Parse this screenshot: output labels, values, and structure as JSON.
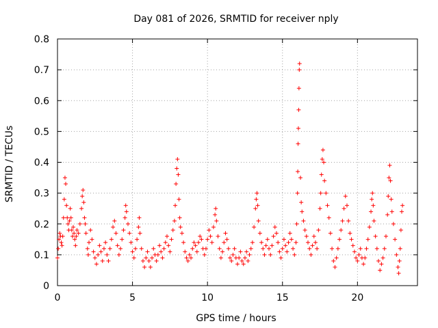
{
  "chart_data": {
    "type": "scatter",
    "title": "Day 081 of 2026, SRMTID for receiver nply",
    "xlabel": "GPS time / hours",
    "ylabel": "SRMTID / TECUs",
    "xlim": [
      0,
      24
    ],
    "ylim": [
      0,
      0.8
    ],
    "x_ticks": [
      0,
      5,
      10,
      15,
      20
    ],
    "x_tick_labels": [
      "0",
      "5",
      "10",
      "15",
      "20"
    ],
    "y_ticks": [
      0,
      0.1,
      0.2,
      0.3,
      0.4,
      0.5,
      0.6,
      0.7,
      0.8
    ],
    "y_tick_labels": [
      "0",
      "0.1",
      "0.2",
      "0.3",
      "0.4",
      "0.5",
      "0.6",
      "0.7",
      "0.8"
    ],
    "grid": true,
    "marker": "+",
    "color": "#ff0000",
    "series": [
      {
        "name": "SRMTID",
        "points": [
          [
            0.0,
            0.09
          ],
          [
            0.05,
            0.12
          ],
          [
            0.1,
            0.15
          ],
          [
            0.15,
            0.17
          ],
          [
            0.2,
            0.16
          ],
          [
            0.25,
            0.14
          ],
          [
            0.3,
            0.13
          ],
          [
            0.35,
            0.16
          ],
          [
            0.4,
            0.22
          ],
          [
            0.45,
            0.28
          ],
          [
            0.5,
            0.35
          ],
          [
            0.55,
            0.33
          ],
          [
            0.6,
            0.26
          ],
          [
            0.65,
            0.22
          ],
          [
            0.7,
            0.2
          ],
          [
            0.75,
            0.18
          ],
          [
            0.8,
            0.21
          ],
          [
            0.85,
            0.25
          ],
          [
            0.9,
            0.22
          ],
          [
            0.95,
            0.18
          ],
          [
            1.0,
            0.16
          ],
          [
            1.05,
            0.19
          ],
          [
            1.1,
            0.17
          ],
          [
            1.15,
            0.15
          ],
          [
            1.2,
            0.13
          ],
          [
            1.25,
            0.16
          ],
          [
            1.3,
            0.18
          ],
          [
            1.4,
            0.17
          ],
          [
            1.5,
            0.2
          ],
          [
            1.6,
            0.25
          ],
          [
            1.65,
            0.29
          ],
          [
            1.7,
            0.31
          ],
          [
            1.75,
            0.27
          ],
          [
            1.8,
            0.22
          ],
          [
            1.85,
            0.2
          ],
          [
            1.9,
            0.17
          ],
          [
            2.0,
            0.12
          ],
          [
            2.05,
            0.1
          ],
          [
            2.1,
            0.14
          ],
          [
            2.2,
            0.18
          ],
          [
            2.3,
            0.15
          ],
          [
            2.4,
            0.11
          ],
          [
            2.5,
            0.09
          ],
          [
            2.6,
            0.07
          ],
          [
            2.7,
            0.1
          ],
          [
            2.8,
            0.13
          ],
          [
            2.9,
            0.11
          ],
          [
            3.0,
            0.08
          ],
          [
            3.1,
            0.12
          ],
          [
            3.2,
            0.14
          ],
          [
            3.3,
            0.1
          ],
          [
            3.4,
            0.08
          ],
          [
            3.5,
            0.12
          ],
          [
            3.6,
            0.15
          ],
          [
            3.7,
            0.19
          ],
          [
            3.8,
            0.21
          ],
          [
            3.9,
            0.17
          ],
          [
            4.0,
            0.13
          ],
          [
            4.1,
            0.1
          ],
          [
            4.2,
            0.12
          ],
          [
            4.3,
            0.15
          ],
          [
            4.4,
            0.18
          ],
          [
            4.5,
            0.22
          ],
          [
            4.55,
            0.26
          ],
          [
            4.6,
            0.24
          ],
          [
            4.7,
            0.2
          ],
          [
            4.8,
            0.17
          ],
          [
            4.9,
            0.14
          ],
          [
            5.0,
            0.11
          ],
          [
            5.1,
            0.09
          ],
          [
            5.2,
            0.12
          ],
          [
            5.3,
            0.15
          ],
          [
            5.4,
            0.19
          ],
          [
            5.45,
            0.22
          ],
          [
            5.5,
            0.17
          ],
          [
            5.6,
            0.12
          ],
          [
            5.7,
            0.08
          ],
          [
            5.8,
            0.06
          ],
          [
            5.9,
            0.09
          ],
          [
            6.0,
            0.11
          ],
          [
            6.1,
            0.08
          ],
          [
            6.2,
            0.06
          ],
          [
            6.3,
            0.09
          ],
          [
            6.4,
            0.12
          ],
          [
            6.5,
            0.1
          ],
          [
            6.6,
            0.08
          ],
          [
            6.7,
            0.1
          ],
          [
            6.8,
            0.13
          ],
          [
            6.9,
            0.11
          ],
          [
            7.0,
            0.09
          ],
          [
            7.1,
            0.12
          ],
          [
            7.2,
            0.14
          ],
          [
            7.3,
            0.16
          ],
          [
            7.4,
            0.13
          ],
          [
            7.5,
            0.11
          ],
          [
            7.6,
            0.15
          ],
          [
            7.7,
            0.18
          ],
          [
            7.8,
            0.21
          ],
          [
            7.85,
            0.26
          ],
          [
            7.9,
            0.33
          ],
          [
            7.95,
            0.38
          ],
          [
            8.0,
            0.41
          ],
          [
            8.05,
            0.36
          ],
          [
            8.1,
            0.28
          ],
          [
            8.15,
            0.22
          ],
          [
            8.2,
            0.19
          ],
          [
            8.3,
            0.17
          ],
          [
            8.4,
            0.14
          ],
          [
            8.5,
            0.11
          ],
          [
            8.6,
            0.09
          ],
          [
            8.7,
            0.08
          ],
          [
            8.8,
            0.1
          ],
          [
            8.9,
            0.09
          ],
          [
            9.0,
            0.12
          ],
          [
            9.1,
            0.14
          ],
          [
            9.2,
            0.13
          ],
          [
            9.3,
            0.11
          ],
          [
            9.4,
            0.14
          ],
          [
            9.5,
            0.16
          ],
          [
            9.6,
            0.15
          ],
          [
            9.7,
            0.12
          ],
          [
            9.8,
            0.1
          ],
          [
            9.9,
            0.12
          ],
          [
            10.0,
            0.15
          ],
          [
            10.1,
            0.18
          ],
          [
            10.2,
            0.16
          ],
          [
            10.3,
            0.14
          ],
          [
            10.4,
            0.19
          ],
          [
            10.5,
            0.23
          ],
          [
            10.55,
            0.25
          ],
          [
            10.6,
            0.21
          ],
          [
            10.7,
            0.16
          ],
          [
            10.8,
            0.12
          ],
          [
            10.9,
            0.09
          ],
          [
            11.0,
            0.11
          ],
          [
            11.1,
            0.14
          ],
          [
            11.2,
            0.17
          ],
          [
            11.3,
            0.15
          ],
          [
            11.4,
            0.12
          ],
          [
            11.5,
            0.09
          ],
          [
            11.6,
            0.08
          ],
          [
            11.7,
            0.1
          ],
          [
            11.8,
            0.12
          ],
          [
            11.9,
            0.09
          ],
          [
            12.0,
            0.07
          ],
          [
            12.1,
            0.09
          ],
          [
            12.2,
            0.11
          ],
          [
            12.3,
            0.08
          ],
          [
            12.4,
            0.07
          ],
          [
            12.5,
            0.09
          ],
          [
            12.6,
            0.11
          ],
          [
            12.7,
            0.08
          ],
          [
            12.8,
            0.1
          ],
          [
            12.9,
            0.12
          ],
          [
            13.0,
            0.14
          ],
          [
            13.1,
            0.19
          ],
          [
            13.2,
            0.25
          ],
          [
            13.25,
            0.28
          ],
          [
            13.3,
            0.3
          ],
          [
            13.35,
            0.26
          ],
          [
            13.4,
            0.21
          ],
          [
            13.5,
            0.17
          ],
          [
            13.6,
            0.14
          ],
          [
            13.7,
            0.12
          ],
          [
            13.8,
            0.1
          ],
          [
            13.9,
            0.13
          ],
          [
            14.0,
            0.15
          ],
          [
            14.1,
            0.12
          ],
          [
            14.2,
            0.1
          ],
          [
            14.3,
            0.13
          ],
          [
            14.4,
            0.16
          ],
          [
            14.5,
            0.19
          ],
          [
            14.6,
            0.17
          ],
          [
            14.7,
            0.14
          ],
          [
            14.8,
            0.11
          ],
          [
            14.9,
            0.09
          ],
          [
            15.0,
            0.12
          ],
          [
            15.1,
            0.15
          ],
          [
            15.2,
            0.13
          ],
          [
            15.3,
            0.11
          ],
          [
            15.4,
            0.14
          ],
          [
            15.5,
            0.17
          ],
          [
            15.6,
            0.15
          ],
          [
            15.7,
            0.12
          ],
          [
            15.8,
            0.1
          ],
          [
            15.9,
            0.14
          ],
          [
            15.95,
            0.2
          ],
          [
            16.0,
            0.3
          ],
          [
            16.02,
            0.37
          ],
          [
            16.04,
            0.46
          ],
          [
            16.06,
            0.51
          ],
          [
            16.08,
            0.57
          ],
          [
            16.1,
            0.64
          ],
          [
            16.12,
            0.7
          ],
          [
            16.14,
            0.72
          ],
          [
            16.2,
            0.35
          ],
          [
            16.25,
            0.27
          ],
          [
            16.3,
            0.24
          ],
          [
            16.4,
            0.21
          ],
          [
            16.5,
            0.18
          ],
          [
            16.6,
            0.16
          ],
          [
            16.7,
            0.14
          ],
          [
            16.8,
            0.12
          ],
          [
            16.9,
            0.1
          ],
          [
            17.0,
            0.13
          ],
          [
            17.1,
            0.16
          ],
          [
            17.2,
            0.14
          ],
          [
            17.3,
            0.12
          ],
          [
            17.4,
            0.18
          ],
          [
            17.5,
            0.25
          ],
          [
            17.55,
            0.3
          ],
          [
            17.6,
            0.36
          ],
          [
            17.65,
            0.41
          ],
          [
            17.7,
            0.44
          ],
          [
            17.75,
            0.4
          ],
          [
            17.8,
            0.34
          ],
          [
            17.9,
            0.3
          ],
          [
            18.0,
            0.26
          ],
          [
            18.1,
            0.22
          ],
          [
            18.2,
            0.17
          ],
          [
            18.3,
            0.12
          ],
          [
            18.4,
            0.08
          ],
          [
            18.5,
            0.06
          ],
          [
            18.6,
            0.09
          ],
          [
            18.7,
            0.12
          ],
          [
            18.8,
            0.15
          ],
          [
            18.9,
            0.18
          ],
          [
            19.0,
            0.21
          ],
          [
            19.1,
            0.25
          ],
          [
            19.2,
            0.29
          ],
          [
            19.3,
            0.26
          ],
          [
            19.4,
            0.21
          ],
          [
            19.5,
            0.17
          ],
          [
            19.6,
            0.15
          ],
          [
            19.7,
            0.13
          ],
          [
            19.8,
            0.11
          ],
          [
            19.9,
            0.09
          ],
          [
            20.0,
            0.08
          ],
          [
            20.1,
            0.1
          ],
          [
            20.2,
            0.12
          ],
          [
            20.3,
            0.09
          ],
          [
            20.4,
            0.07
          ],
          [
            20.5,
            0.09
          ],
          [
            20.6,
            0.12
          ],
          [
            20.7,
            0.15
          ],
          [
            20.8,
            0.19
          ],
          [
            20.9,
            0.24
          ],
          [
            20.95,
            0.28
          ],
          [
            21.0,
            0.3
          ],
          [
            21.05,
            0.26
          ],
          [
            21.1,
            0.21
          ],
          [
            21.2,
            0.16
          ],
          [
            21.3,
            0.12
          ],
          [
            21.4,
            0.08
          ],
          [
            21.5,
            0.05
          ],
          [
            21.6,
            0.07
          ],
          [
            21.7,
            0.09
          ],
          [
            21.8,
            0.12
          ],
          [
            21.9,
            0.16
          ],
          [
            22.0,
            0.23
          ],
          [
            22.05,
            0.29
          ],
          [
            22.1,
            0.35
          ],
          [
            22.15,
            0.39
          ],
          [
            22.2,
            0.34
          ],
          [
            22.25,
            0.28
          ],
          [
            22.3,
            0.24
          ],
          [
            22.4,
            0.2
          ],
          [
            22.5,
            0.15
          ],
          [
            22.6,
            0.1
          ],
          [
            22.7,
            0.06
          ],
          [
            22.75,
            0.04
          ],
          [
            22.8,
            0.08
          ],
          [
            22.85,
            0.12
          ],
          [
            22.9,
            0.18
          ],
          [
            22.95,
            0.24
          ],
          [
            23.0,
            0.26
          ]
        ]
      }
    ]
  }
}
